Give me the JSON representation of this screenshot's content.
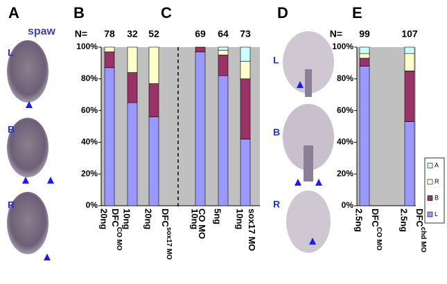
{
  "figure": {
    "panels": [
      "A",
      "B",
      "C",
      "D",
      "E"
    ],
    "gene": "spaw",
    "image_labels_a": [
      "L",
      "B",
      "R"
    ],
    "image_labels_d": [
      "L",
      "B",
      "R"
    ]
  },
  "chart_data": [
    {
      "type": "bar",
      "stacked": true,
      "divider": true,
      "categories": [
        "20ng",
        "10ng",
        "20ng",
        "10ng",
        "5ng",
        "10ng"
      ],
      "groups": [
        {
          "text": "DFC",
          "sup": "CO MO"
        },
        {
          "text": "DFC",
          "sup": "sox17 MO"
        },
        {
          "text": "CO MO"
        },
        {
          "text": "sox17 MO"
        }
      ],
      "n_label": "N=",
      "n_values": [
        78,
        32,
        52,
        69,
        64,
        73
      ],
      "series": [
        {
          "name": "L",
          "color": "#9999ff",
          "values": [
            87,
            65,
            56,
            97,
            82,
            42
          ]
        },
        {
          "name": "B",
          "color": "#993366",
          "values": [
            10,
            19,
            21,
            3,
            13,
            38
          ]
        },
        {
          "name": "R",
          "color": "#ffffcc",
          "values": [
            3,
            16,
            23,
            0,
            3,
            11
          ]
        },
        {
          "name": "A",
          "color": "#ccffff",
          "values": [
            0,
            0,
            0,
            0,
            2,
            9
          ]
        }
      ],
      "ylim": [
        0,
        100
      ],
      "yticks": [
        {
          "value": 0,
          "label": "0%"
        },
        {
          "value": 20,
          "label": "20%"
        },
        {
          "value": 40,
          "label": "40%"
        },
        {
          "value": 60,
          "label": "60%"
        },
        {
          "value": 80,
          "label": "80%"
        },
        {
          "value": 100,
          "label": "100%"
        }
      ]
    },
    {
      "type": "bar",
      "stacked": true,
      "legend": "right",
      "categories": [
        "2.5ng",
        "2.5ng"
      ],
      "groups": [
        {
          "text": "DFC",
          "sup": "CO MO"
        },
        {
          "text": "DFC",
          "sup": "chd MO"
        }
      ],
      "n_label": "N=",
      "n_values": [
        99,
        107
      ],
      "series": [
        {
          "name": "L",
          "color": "#9999ff",
          "values": [
            88,
            53
          ]
        },
        {
          "name": "B",
          "color": "#993366",
          "values": [
            5,
            32
          ]
        },
        {
          "name": "R",
          "color": "#ffffcc",
          "values": [
            3,
            11
          ]
        },
        {
          "name": "A",
          "color": "#ccffff",
          "values": [
            4,
            4
          ]
        }
      ],
      "ylim": [
        0,
        100
      ],
      "yticks": [
        {
          "value": 0,
          "label": "0%"
        },
        {
          "value": 20,
          "label": "20%"
        },
        {
          "value": 40,
          "label": "40%"
        },
        {
          "value": 60,
          "label": "60%"
        },
        {
          "value": 80,
          "label": "80%"
        },
        {
          "value": 100,
          "label": "100%"
        }
      ]
    }
  ]
}
